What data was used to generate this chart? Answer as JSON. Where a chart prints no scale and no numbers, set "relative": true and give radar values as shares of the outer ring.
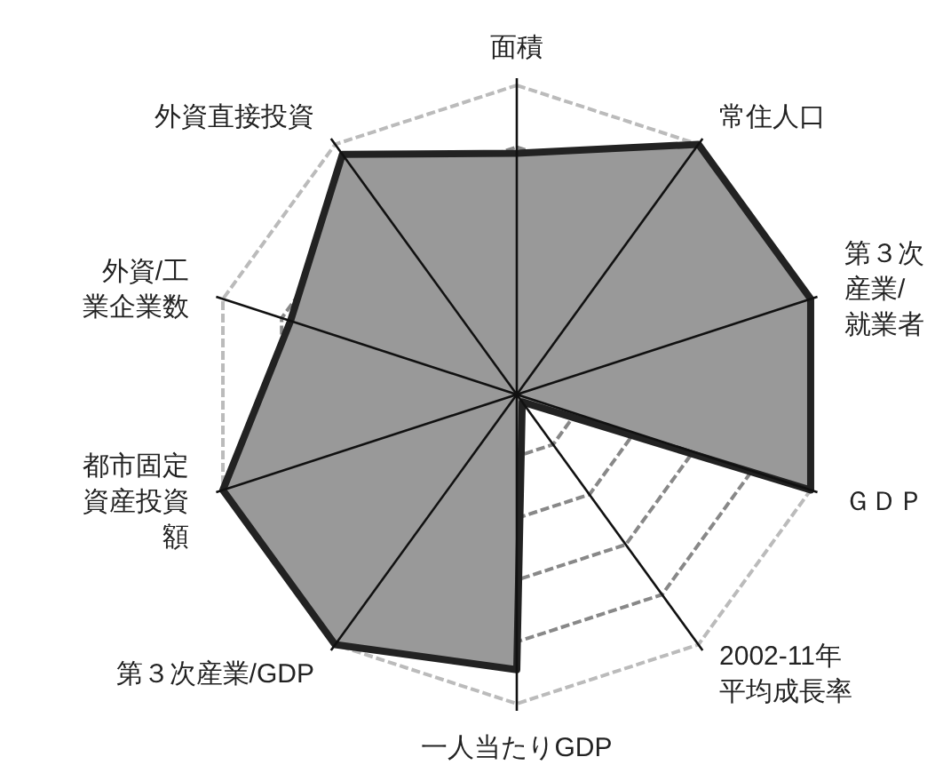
{
  "chart_data": {
    "type": "radar",
    "relative": true,
    "grid": true,
    "categories": [
      "面積",
      "常住人口",
      "第３次産業/就業者",
      "ＧＤＰ",
      "2002-11年平均成長率",
      "一人当たりGDP",
      "第３次産業/GDP",
      "都市固定資産投資額",
      "外資/工業企業数",
      "外資直接投資"
    ],
    "series": [
      {
        "color": "#999999",
        "values": [
          0.78,
          1.0,
          1.0,
          1.0,
          0.03,
          0.89,
          1.0,
          1.0,
          0.77,
          0.96
        ]
      }
    ]
  }
}
